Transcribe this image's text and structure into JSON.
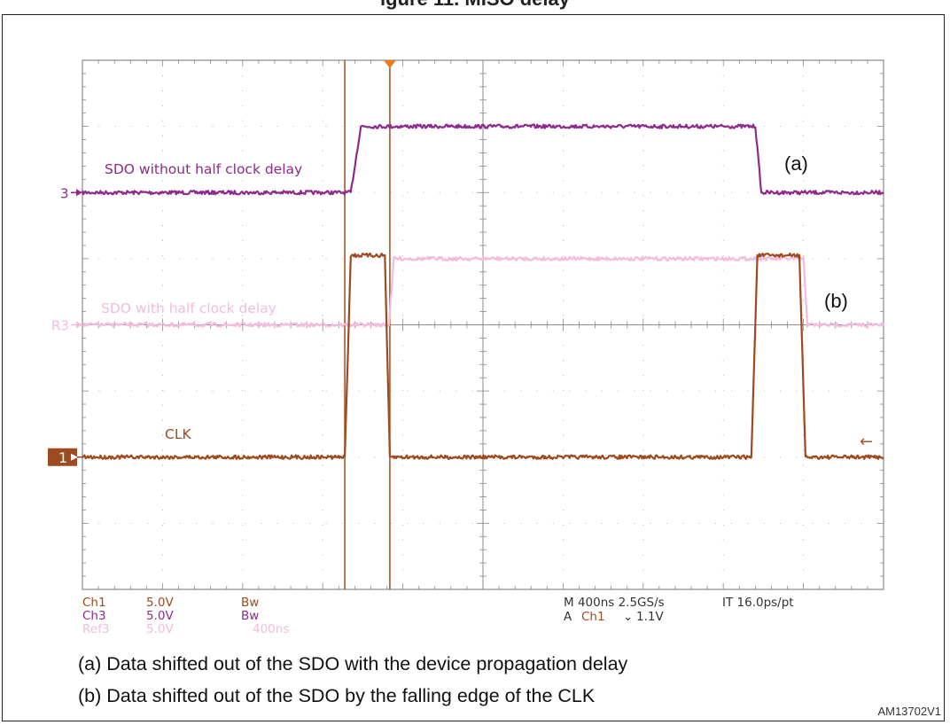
{
  "figure": {
    "title": "igure 11. MISO delay",
    "code": "AM13702V1",
    "notes": [
      "(a) Data shifted out of the SDO with the device propagation delay",
      "(b) Data shifted out of the SDO by the falling edge of the CLK"
    ]
  },
  "chart_data": {
    "type": "line",
    "title": "",
    "xlabel": "",
    "ylabel": "",
    "x_unit": "ns",
    "time_per_div_ns": 400,
    "xlim": [
      0,
      4000
    ],
    "ylim": [
      -4,
      4
    ],
    "grid": true,
    "series": [
      {
        "name": "SDO without half clock delay",
        "channel": "Ch3",
        "marker": "3",
        "color": "#8e2a8c",
        "label_tag": "(a)",
        "baseline_div": 2.0,
        "high_div": 3.0,
        "points": [
          [
            0,
            0
          ],
          [
            1340,
            0
          ],
          [
            1390,
            1
          ],
          [
            3360,
            1
          ],
          [
            3390,
            0
          ],
          [
            4000,
            0
          ]
        ]
      },
      {
        "name": "SDO with half clock delay",
        "channel": "Ref3",
        "marker": "R3",
        "color": "#f2bcdc",
        "label_tag": "(b)",
        "baseline_div": 0.0,
        "high_div": 1.0,
        "points": [
          [
            0,
            0
          ],
          [
            1530,
            0
          ],
          [
            1555,
            1
          ],
          [
            3600,
            1
          ],
          [
            3620,
            0
          ],
          [
            4000,
            0
          ]
        ]
      },
      {
        "name": "CLK",
        "channel": "Ch1",
        "marker": "1",
        "color": "#9c4a1e",
        "label_tag": "",
        "baseline_div": -2.0,
        "high_div": 1.05,
        "points": [
          [
            0,
            0
          ],
          [
            1310,
            0
          ],
          [
            1340,
            1
          ],
          [
            1510,
            1
          ],
          [
            1535,
            0
          ],
          [
            3340,
            0
          ],
          [
            3370,
            1
          ],
          [
            3580,
            1
          ],
          [
            3610,
            0
          ],
          [
            4000,
            0
          ]
        ]
      }
    ],
    "cursors_ns": [
      1310,
      1535
    ],
    "trigger_ns": 1535,
    "readouts_left": [
      [
        "Ch1",
        "5.0V",
        "Bw"
      ],
      [
        "Ch3",
        "5.0V",
        "Bw"
      ],
      [
        "Ref3",
        "5.0V",
        "400ns"
      ]
    ],
    "readouts_right": {
      "line1_a": "M 400ns 2.5GS/s",
      "line1_b": "IT 16.0ps/pt",
      "line2_a": "A",
      "line2_ch": "Ch1",
      "line2_slope": "⌄",
      "line2_level": "1.1V"
    },
    "trigger_arrow": "←"
  }
}
